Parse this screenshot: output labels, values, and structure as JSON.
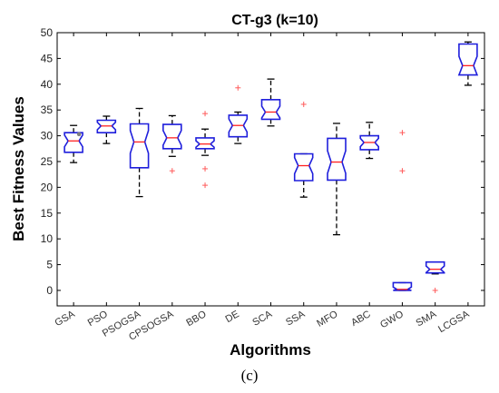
{
  "chart_data": {
    "type": "boxplot",
    "title": "CT-g3  (k=10)",
    "xlabel": "Algorithms",
    "ylabel": "Best  Fitness  Values",
    "ylim": [
      -3,
      50
    ],
    "yticks": [
      0,
      5,
      10,
      15,
      20,
      25,
      30,
      35,
      40,
      45,
      50
    ],
    "grid": false,
    "categories": [
      "GSA",
      "PSO",
      "PSOGSA",
      "CPSOGSA",
      "BBO",
      "DE",
      "SCA",
      "SSA",
      "MFO",
      "ABC",
      "GWO",
      "SMA",
      "LCGSA"
    ],
    "boxes": [
      {
        "min": 24.8,
        "q1": 26.8,
        "median": 29.0,
        "q3": 30.6,
        "max": 32.0,
        "outliers": [
          30.3
        ]
      },
      {
        "min": 28.5,
        "q1": 30.6,
        "median": 31.9,
        "q3": 33.0,
        "max": 33.8,
        "outliers": []
      },
      {
        "min": 18.2,
        "q1": 23.8,
        "median": 28.8,
        "q3": 32.3,
        "max": 35.3,
        "outliers": []
      },
      {
        "min": 26.0,
        "q1": 27.5,
        "median": 29.6,
        "q3": 32.2,
        "max": 33.9,
        "outliers": [
          23.2
        ]
      },
      {
        "min": 26.2,
        "q1": 27.5,
        "median": 28.4,
        "q3": 29.6,
        "max": 31.3,
        "outliers": [
          34.3,
          23.6,
          20.4
        ]
      },
      {
        "min": 28.5,
        "q1": 29.8,
        "median": 32.0,
        "q3": 34.0,
        "max": 34.6,
        "outliers": [
          39.3
        ]
      },
      {
        "min": 31.9,
        "q1": 33.2,
        "median": 34.6,
        "q3": 37.0,
        "max": 41.0,
        "outliers": []
      },
      {
        "min": 18.1,
        "q1": 21.3,
        "median": 24.2,
        "q3": 26.5,
        "max": 26.5,
        "outliers": [
          36.1
        ]
      },
      {
        "min": 10.8,
        "q1": 21.4,
        "median": 24.9,
        "q3": 29.5,
        "max": 32.4,
        "outliers": []
      },
      {
        "min": 25.6,
        "q1": 27.3,
        "median": 28.7,
        "q3": 30.0,
        "max": 32.6,
        "outliers": []
      },
      {
        "min": 0.0,
        "q1": 0.0,
        "median": 0.2,
        "q3": 1.5,
        "max": 1.5,
        "outliers": [
          30.6,
          23.2
        ]
      },
      {
        "min": 3.2,
        "q1": 3.4,
        "median": 4.1,
        "q3": 5.5,
        "max": 5.5,
        "outliers": [
          0.0
        ]
      },
      {
        "min": 39.8,
        "q1": 41.8,
        "median": 43.6,
        "q3": 47.8,
        "max": 48.2,
        "outliers": []
      }
    ],
    "colors": {
      "box": "#1f1fdc",
      "median": "#ff2020",
      "whisker": "#000000",
      "outlier": "#ff5a5a",
      "special_outlier": "#7f7f7f"
    }
  },
  "caption": "(c)"
}
